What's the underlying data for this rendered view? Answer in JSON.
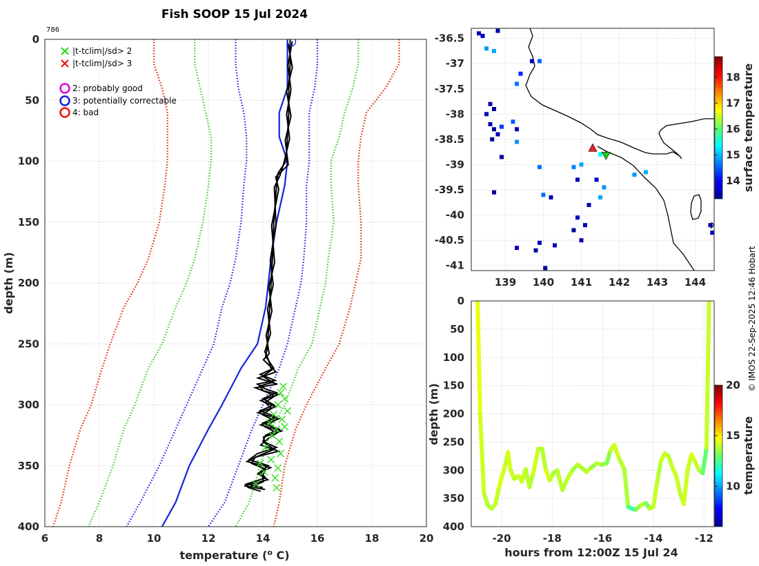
{
  "title": "Fish SOOP 15 Jul 2024",
  "profile_id": "786",
  "credit": "© IMOS 22-Sep-2025 12:46 Hobart",
  "chart_data": [
    {
      "type": "line",
      "name": "profile",
      "xlabel": "temperature (",
      "xlabel_sup": "o",
      "xlabel_end": " C)",
      "ylabel": "depth (m)",
      "xlim": [
        6,
        20
      ],
      "ylim": [
        0,
        400
      ],
      "xticks": [
        "6",
        "8",
        "10",
        "12",
        "14",
        "16",
        "18",
        "20"
      ],
      "yticks": [
        "0",
        "50",
        "100",
        "150",
        "200",
        "250",
        "300",
        "350",
        "400"
      ],
      "legend": [
        {
          "symbol": "x",
          "color": "#22dd22",
          "label": "|t-tclim|/sd> 2"
        },
        {
          "symbol": "x",
          "color": "#ee1111",
          "label": "|t-tclim|/sd> 3"
        },
        {
          "symbol": "o",
          "color": "#dd00dd",
          "label": "2: probably good"
        },
        {
          "symbol": "o",
          "color": "#1122dd",
          "label": "3: potentially correctable"
        },
        {
          "symbol": "o",
          "color": "#ee1111",
          "label": "4: bad"
        }
      ],
      "depth": [
        0,
        20,
        40,
        60,
        80,
        100,
        120,
        150,
        180,
        200,
        220,
        250,
        270,
        300,
        320,
        350,
        380,
        400
      ],
      "series": [
        {
          "name": "clim-3sd-low",
          "color": "#dd2200",
          "style": "dotted",
          "values": [
            10.0,
            10.0,
            10.3,
            10.5,
            10.5,
            10.5,
            10.4,
            10.2,
            9.8,
            9.4,
            8.9,
            8.4,
            8.1,
            7.7,
            7.3,
            6.9,
            6.6,
            6.3
          ]
        },
        {
          "name": "clim-2sd-low",
          "color": "#33cc22",
          "style": "dotted",
          "values": [
            11.5,
            11.5,
            11.7,
            11.9,
            12.1,
            12.1,
            12.0,
            11.8,
            11.5,
            11.2,
            10.8,
            10.3,
            9.8,
            9.3,
            8.9,
            8.5,
            8.0,
            7.6
          ]
        },
        {
          "name": "clim-1sd-low",
          "color": "#1122dd",
          "style": "dotted",
          "values": [
            13.0,
            13.0,
            13.1,
            13.3,
            13.4,
            13.4,
            13.3,
            13.2,
            13.0,
            12.8,
            12.5,
            12.2,
            11.8,
            11.2,
            10.8,
            10.2,
            9.5,
            9.0
          ]
        },
        {
          "name": "clim-mean",
          "color": "#1122dd",
          "style": "solid",
          "values": [
            14.9,
            14.9,
            14.9,
            14.6,
            14.6,
            14.9,
            14.8,
            14.5,
            14.3,
            14.2,
            14.1,
            13.8,
            13.2,
            12.5,
            12.0,
            11.3,
            10.8,
            10.3
          ]
        },
        {
          "name": "clim-1sd-high",
          "color": "#1122dd",
          "style": "dotted",
          "values": [
            16.0,
            16.0,
            15.9,
            15.7,
            15.7,
            15.7,
            15.6,
            15.6,
            15.5,
            15.4,
            15.2,
            14.9,
            14.6,
            14.0,
            13.6,
            13.1,
            12.6,
            12.0
          ]
        },
        {
          "name": "clim-2sd-high",
          "color": "#33cc22",
          "style": "dotted",
          "values": [
            17.5,
            17.5,
            17.3,
            17.0,
            16.8,
            16.5,
            16.5,
            16.6,
            16.4,
            16.3,
            16.1,
            15.8,
            15.3,
            14.8,
            14.3,
            13.9,
            13.5,
            13.0
          ]
        },
        {
          "name": "clim-3sd-high",
          "color": "#dd2200",
          "style": "dotted",
          "values": [
            19.0,
            19.0,
            18.5,
            17.8,
            17.6,
            17.5,
            17.5,
            17.6,
            17.6,
            17.4,
            17.2,
            16.8,
            16.3,
            15.6,
            15.2,
            14.8,
            14.6,
            14.4
          ]
        }
      ],
      "observed": {
        "name": "XBT profile",
        "color": "#000000",
        "depth": [
          0,
          20,
          40,
          60,
          80,
          100,
          110,
          120,
          150,
          180,
          200,
          220,
          240,
          255,
          260,
          270,
          275,
          280,
          283,
          287,
          290,
          295,
          300,
          305,
          310,
          315,
          320,
          325,
          330,
          335,
          340,
          345,
          350,
          355,
          360,
          365,
          368
        ],
        "values": [
          15.0,
          15.0,
          14.95,
          14.95,
          14.9,
          14.85,
          14.55,
          14.5,
          14.4,
          14.35,
          14.3,
          14.25,
          14.2,
          14.15,
          14.1,
          14.4,
          13.9,
          14.45,
          13.8,
          14.1,
          14.5,
          14.0,
          14.4,
          13.9,
          14.5,
          14.0,
          14.6,
          14.1,
          14.0,
          14.5,
          13.8,
          13.5,
          14.2,
          13.9,
          14.1,
          13.4,
          14.0
        ]
      },
      "flags_x": {
        "color": "#33dd22",
        "depth": [
          285,
          290,
          295,
          300,
          305,
          308,
          312,
          315,
          318,
          320,
          325,
          330,
          335,
          340,
          345,
          348,
          352,
          355,
          360,
          365,
          368
        ],
        "values": [
          14.75,
          14.65,
          14.8,
          14.55,
          14.9,
          14.4,
          14.7,
          14.25,
          14.8,
          14.5,
          14.35,
          14.6,
          14.1,
          14.65,
          14.3,
          13.9,
          14.55,
          14.05,
          14.45,
          13.75,
          14.5
        ]
      },
      "marker": {
        "depth": 2,
        "value": 15.05,
        "color": "#1122dd"
      }
    },
    {
      "type": "heatmap",
      "name": "map",
      "xlim": [
        138.1,
        144.5
      ],
      "ylim": [
        -41.1,
        -36.3
      ],
      "xticks": [
        "139",
        "140",
        "141",
        "142",
        "143",
        "144"
      ],
      "yticks": [
        "-36.5",
        "-37",
        "-37.5",
        "-38",
        "-38.5",
        "-39",
        "-39.5",
        "-40",
        "-40.5",
        "-41"
      ],
      "colorbar_label": "surface temperature",
      "colorbar_ticks": [
        "14",
        "15",
        "16",
        "17",
        "18"
      ],
      "clim": [
        13.3,
        18.8
      ],
      "cells": [
        {
          "lon": 138.3,
          "lat": -36.4,
          "t": 13.5
        },
        {
          "lon": 138.4,
          "lat": -36.45,
          "t": 13.6
        },
        {
          "lon": 138.8,
          "lat": -36.35,
          "t": 13.5
        },
        {
          "lon": 138.5,
          "lat": -36.7,
          "t": 14.8
        },
        {
          "lon": 138.7,
          "lat": -36.75,
          "t": 14.9
        },
        {
          "lon": 139.9,
          "lat": -36.95,
          "t": 14.5
        },
        {
          "lon": 139.7,
          "lat": -36.95,
          "t": 13.5
        },
        {
          "lon": 139.4,
          "lat": -37.2,
          "t": 14.2
        },
        {
          "lon": 139.3,
          "lat": -37.4,
          "t": 14.6
        },
        {
          "lon": 138.6,
          "lat": -37.8,
          "t": 13.5
        },
        {
          "lon": 138.7,
          "lat": -37.9,
          "t": 13.4
        },
        {
          "lon": 138.5,
          "lat": -38.0,
          "t": 13.6
        },
        {
          "lon": 138.6,
          "lat": -38.2,
          "t": 13.5
        },
        {
          "lon": 138.7,
          "lat": -38.3,
          "t": 13.4
        },
        {
          "lon": 138.8,
          "lat": -38.4,
          "t": 13.5
        },
        {
          "lon": 138.65,
          "lat": -38.5,
          "t": 13.4
        },
        {
          "lon": 138.9,
          "lat": -38.25,
          "t": 14.3
        },
        {
          "lon": 139.3,
          "lat": -38.3,
          "t": 13.5
        },
        {
          "lon": 139.2,
          "lat": -38.15,
          "t": 14.5
        },
        {
          "lon": 139.3,
          "lat": -38.55,
          "t": 14.8
        },
        {
          "lon": 138.9,
          "lat": -38.85,
          "t": 13.4
        },
        {
          "lon": 139.9,
          "lat": -39.05,
          "t": 14.6
        },
        {
          "lon": 140.8,
          "lat": -39.05,
          "t": 14.7
        },
        {
          "lon": 141.0,
          "lat": -39.0,
          "t": 14.9
        },
        {
          "lon": 140.9,
          "lat": -39.3,
          "t": 13.5
        },
        {
          "lon": 141.4,
          "lat": -39.3,
          "t": 13.6
        },
        {
          "lon": 141.6,
          "lat": -39.45,
          "t": 14.8
        },
        {
          "lon": 140.0,
          "lat": -39.6,
          "t": 14.6
        },
        {
          "lon": 140.2,
          "lat": -39.65,
          "t": 13.5
        },
        {
          "lon": 138.7,
          "lat": -39.55,
          "t": 13.4
        },
        {
          "lon": 141.5,
          "lat": -39.65,
          "t": 14.9
        },
        {
          "lon": 141.2,
          "lat": -39.8,
          "t": 13.5
        },
        {
          "lon": 140.9,
          "lat": -40.05,
          "t": 13.6
        },
        {
          "lon": 141.1,
          "lat": -40.2,
          "t": 13.5
        },
        {
          "lon": 140.8,
          "lat": -40.3,
          "t": 13.4
        },
        {
          "lon": 141.0,
          "lat": -40.5,
          "t": 13.5
        },
        {
          "lon": 140.3,
          "lat": -40.6,
          "t": 13.5
        },
        {
          "lon": 139.9,
          "lat": -40.55,
          "t": 13.6
        },
        {
          "lon": 139.8,
          "lat": -40.7,
          "t": 13.4
        },
        {
          "lon": 139.3,
          "lat": -40.65,
          "t": 13.5
        },
        {
          "lon": 140.05,
          "lat": -41.05,
          "t": 13.4
        },
        {
          "lon": 144.4,
          "lat": -40.2,
          "t": 13.5
        },
        {
          "lon": 144.45,
          "lat": -40.35,
          "t": 13.6
        },
        {
          "lon": 142.7,
          "lat": -39.15,
          "t": 14.9
        },
        {
          "lon": 142.4,
          "lat": -39.2,
          "t": 14.8
        },
        {
          "lon": 141.5,
          "lat": -38.8,
          "t": 15.4
        }
      ],
      "track": [
        {
          "lon": 141.3,
          "lat": -38.67,
          "color": "#ee2222",
          "symbol": "triangle-up"
        },
        {
          "lon": 141.65,
          "lat": -38.82,
          "color": "#22cc22",
          "symbol": "triangle-down"
        }
      ]
    },
    {
      "type": "line",
      "name": "depth-time",
      "xlabel": "hours from 12:00Z 15 Jul 24",
      "ylabel": "depth (m)",
      "xlim": [
        -21.2,
        -11.6
      ],
      "ylim": [
        0,
        400
      ],
      "xticks": [
        "-20",
        "-18",
        "-16",
        "-14",
        "-12"
      ],
      "yticks": [
        "0",
        "50",
        "100",
        "150",
        "200",
        "250",
        "300",
        "350",
        "400"
      ],
      "colorbar_label": "temperature",
      "colorbar_ticks": [
        "10",
        "15",
        "20"
      ],
      "clim": [
        6,
        20
      ],
      "x": [
        -20.95,
        -20.85,
        -20.7,
        -20.55,
        -20.4,
        -20.25,
        -20.1,
        -19.95,
        -19.85,
        -19.75,
        -19.65,
        -19.5,
        -19.35,
        -19.2,
        -19.05,
        -18.9,
        -18.75,
        -18.55,
        -18.4,
        -18.25,
        -18.1,
        -17.95,
        -17.8,
        -17.6,
        -17.4,
        -17.2,
        -17.0,
        -16.85,
        -16.65,
        -16.45,
        -16.25,
        -16.05,
        -15.85,
        -15.7,
        -15.55,
        -15.35,
        -15.15,
        -15.0,
        -14.85,
        -14.7,
        -14.5,
        -14.3,
        -14.15,
        -14.0,
        -13.85,
        -13.7,
        -13.55,
        -13.4,
        -13.25,
        -13.1,
        -12.95,
        -12.8,
        -12.65,
        -12.5,
        -12.35,
        -12.2,
        -12.05,
        -11.9,
        -11.8
      ],
      "values": [
        0,
        200,
        340,
        362,
        368,
        360,
        330,
        305,
        290,
        268,
        300,
        315,
        310,
        320,
        298,
        330,
        305,
        262,
        262,
        300,
        318,
        305,
        300,
        335,
        315,
        300,
        290,
        295,
        303,
        295,
        288,
        290,
        288,
        265,
        255,
        280,
        298,
        365,
        368,
        370,
        362,
        358,
        368,
        365,
        320,
        283,
        270,
        275,
        295,
        310,
        340,
        360,
        300,
        272,
        285,
        300,
        305,
        260,
        0
      ],
      "temps": [
        14.5,
        14.2,
        14.0,
        13.8,
        14.0,
        14.1,
        14.3,
        14.2,
        14.0,
        14.3,
        14.1,
        14.0,
        14.2,
        14.1,
        14.0,
        13.9,
        14.2,
        14.0,
        13.9,
        14.3,
        14.1,
        13.6,
        14.0,
        13.9,
        14.1,
        13.7,
        14.0,
        13.8,
        14.0,
        13.6,
        14.0,
        13.5,
        13.4,
        14.1,
        14.2,
        14.0,
        13.8,
        12.5,
        12.2,
        13.4,
        13.9,
        13.2,
        14.0,
        14.1,
        13.9,
        14.2,
        14.1,
        14.0,
        14.2,
        14.1,
        14.0,
        14.2,
        14.1,
        14.3,
        14.1,
        13.9,
        12.9,
        14.1,
        14.5
      ]
    }
  ]
}
